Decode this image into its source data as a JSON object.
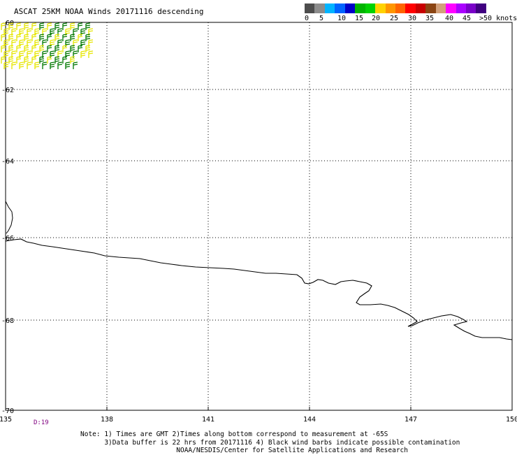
{
  "header": {
    "title": "ASCAT 25KM NOAA Winds 20171116 descending"
  },
  "legend": {
    "swatches": [
      {
        "color": "#4d4d4d"
      },
      {
        "color": "#8c8c8c"
      },
      {
        "color": "#00b4ff"
      },
      {
        "color": "#0064ff"
      },
      {
        "color": "#0000c8"
      },
      {
        "color": "#00b400"
      },
      {
        "color": "#00d200"
      },
      {
        "color": "#ffd200"
      },
      {
        "color": "#ff9600"
      },
      {
        "color": "#ff6400"
      },
      {
        "color": "#ff0000"
      },
      {
        "color": "#c80000"
      },
      {
        "color": "#8b4513"
      },
      {
        "color": "#d2a07a"
      },
      {
        "color": "#ff00ff"
      },
      {
        "color": "#aa00ff"
      },
      {
        "color": "#7a00c8"
      },
      {
        "color": "#400080"
      }
    ],
    "labels": [
      "0",
      "5",
      "10",
      "15",
      "20",
      "25",
      "30",
      "35",
      "40",
      "45",
      ">50 knots"
    ]
  },
  "map": {
    "lon_labels": [
      "135",
      "138",
      "141",
      "144",
      "147",
      "150"
    ],
    "lat_labels": [
      "-60",
      "-62",
      "-64",
      "-66",
      "-68",
      "-70"
    ],
    "lon_range": [
      135,
      150
    ],
    "lat_range": [
      -60,
      -70
    ],
    "gridlines": "dotted",
    "coastline": "Antarctic coast (George V Land / Adelie Land)",
    "wind_barb_colors": {
      "yellow": "#e6e600",
      "green": "#007800"
    }
  },
  "time_marker": "D:19",
  "notes": {
    "line1": "Note: 1) Times are GMT 2)Times along bottom correspond to measurement at -65S",
    "line2": "      3)Data buffer is 22 hrs from 20171116 4) Black wind barbs indicate possible contamination",
    "line3": "                        NOAA/NESDIS/Center for Satellite Applications and Research"
  }
}
